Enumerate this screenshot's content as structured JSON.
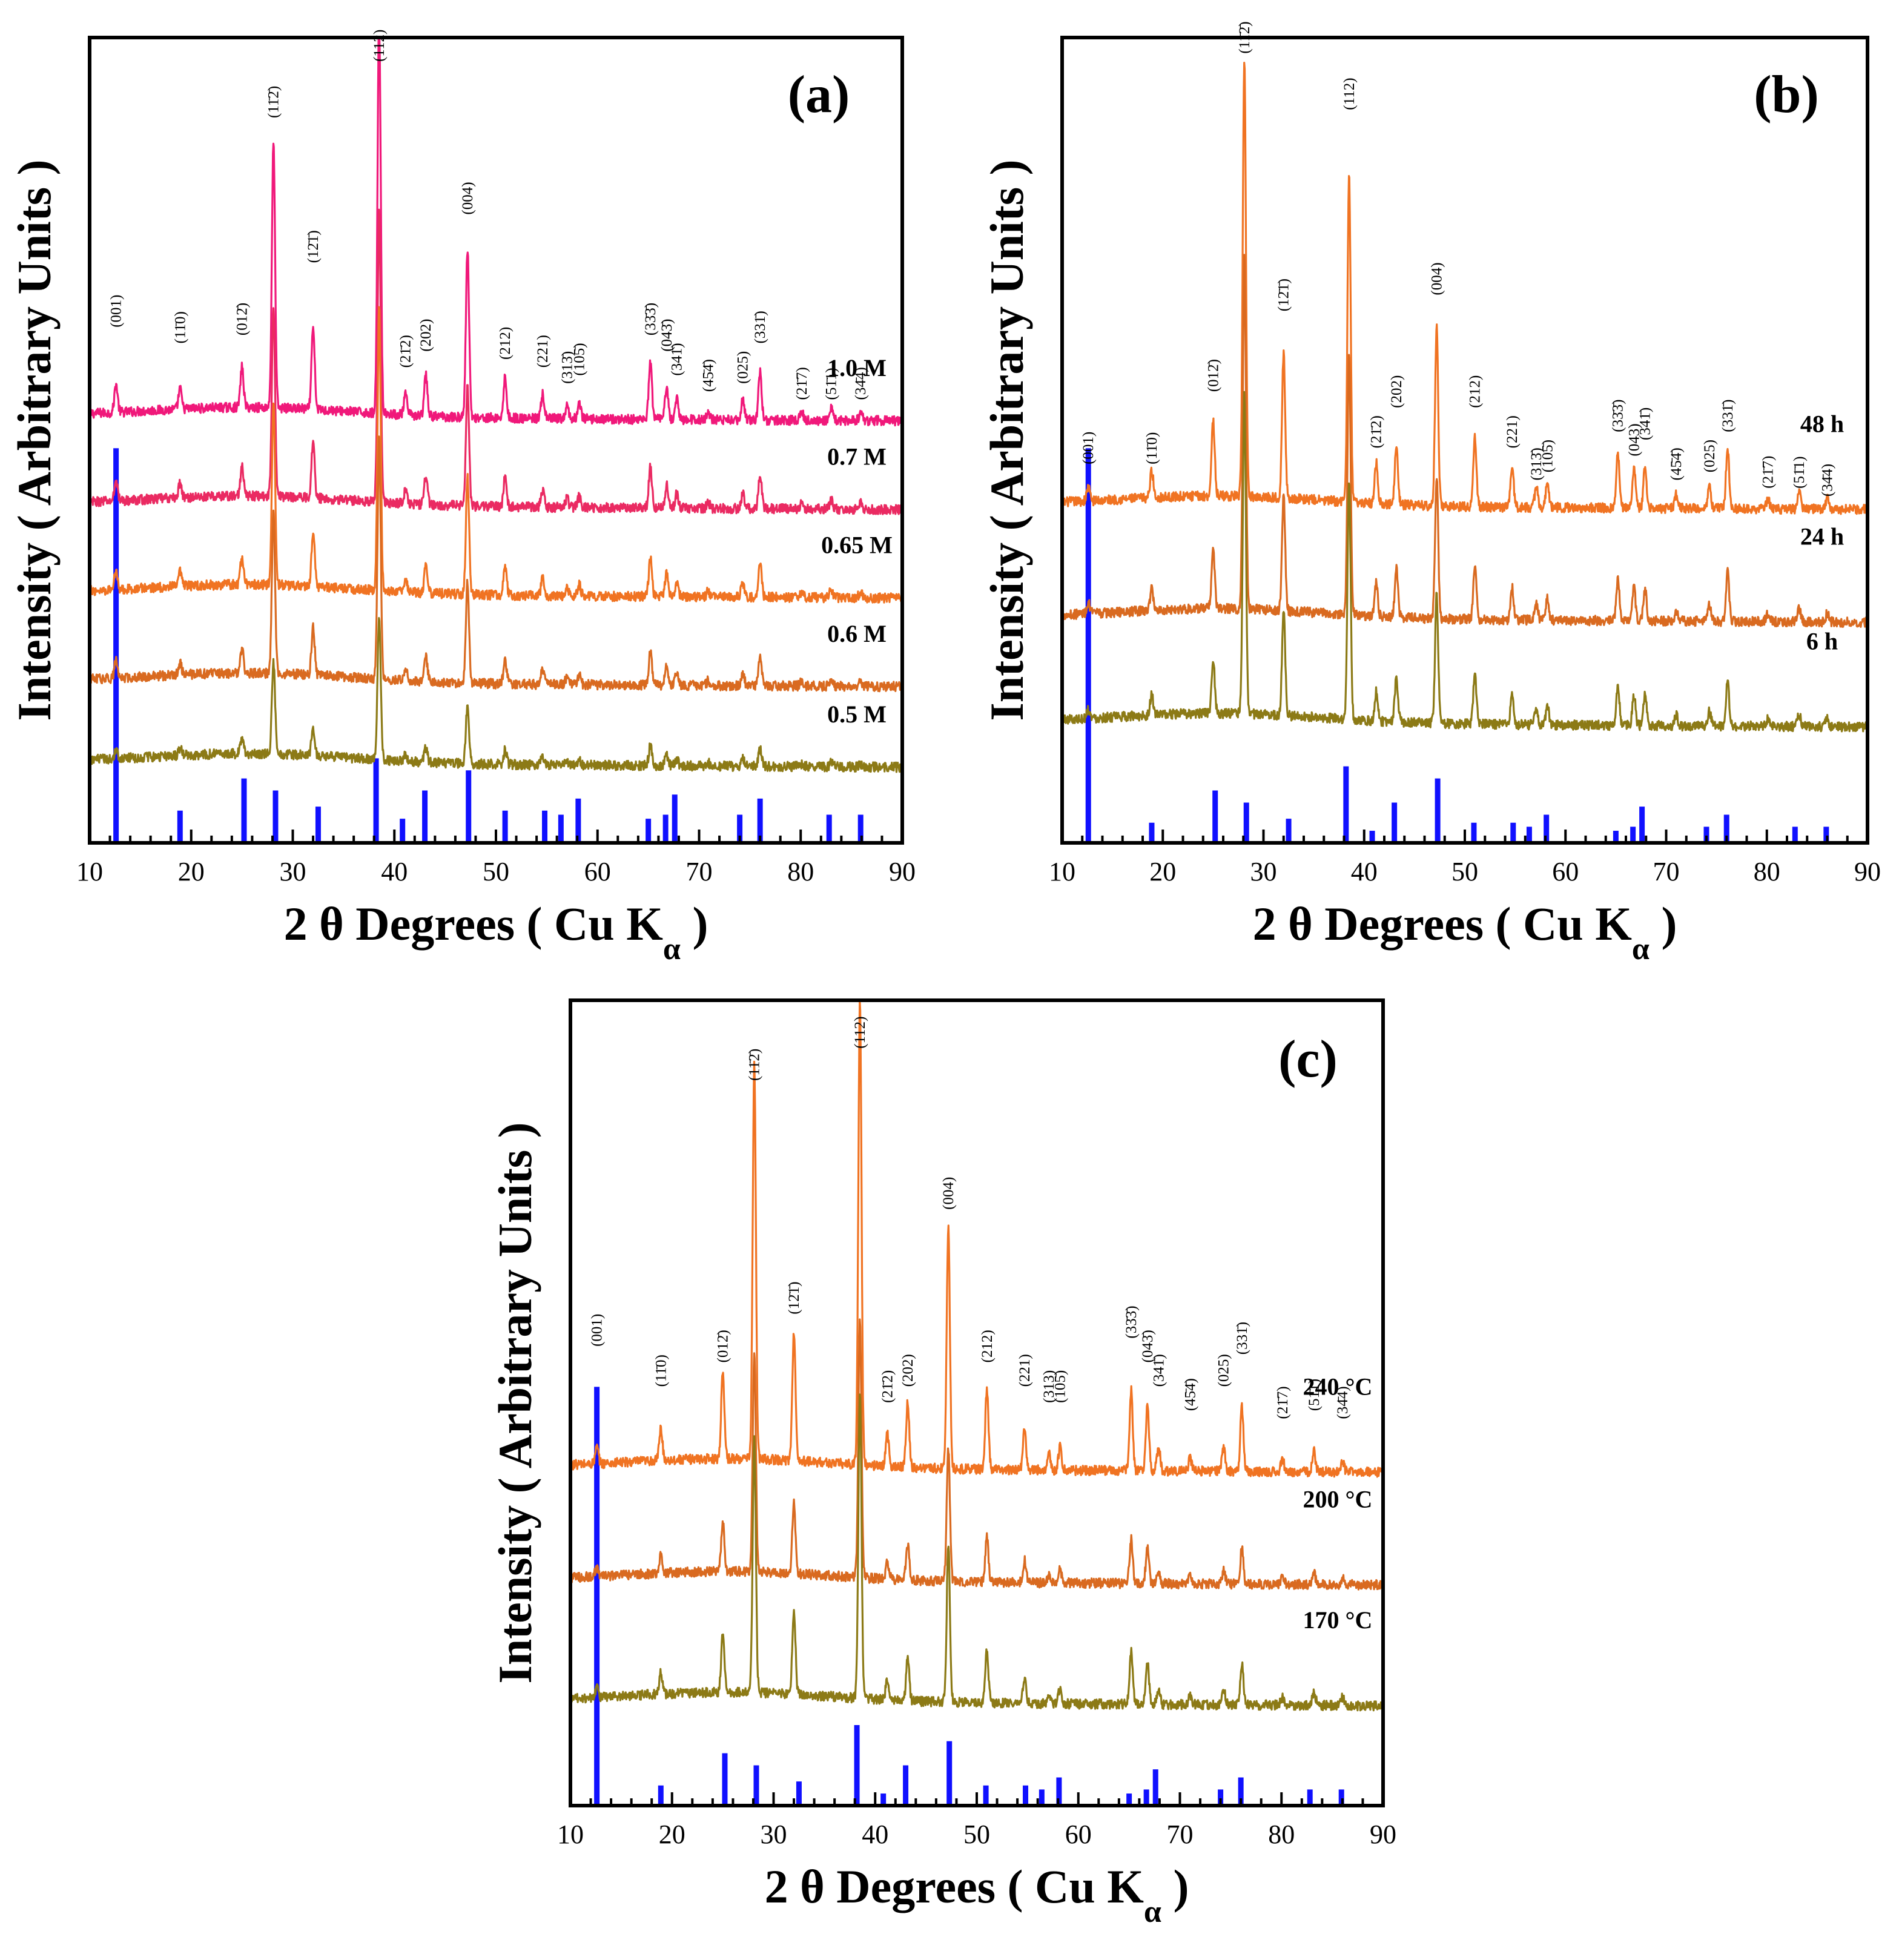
{
  "common": {
    "xlabel": "2 θ Degrees ( Cu K",
    "xlabel_sub": "α",
    "xlabel_close": " )",
    "ylabel": "Intensity ( Arbitrary Units )",
    "xlim": [
      10,
      90
    ],
    "xticks": [
      10,
      20,
      30,
      40,
      50,
      60,
      70,
      80,
      90
    ],
    "colors": {
      "ref": "#1010ff"
    }
  },
  "chart_data": [
    {
      "type": "line",
      "panel": "(a)",
      "title": "(a)",
      "series": [
        {
          "name": "1.0 M",
          "color": "#f0187a",
          "offset": 0.53,
          "scale": 1.0
        },
        {
          "name": "0.7 M",
          "color": "#ea2a62",
          "offset": 0.42,
          "scale": 0.72
        },
        {
          "name": "0.65 M",
          "color": "#f07322",
          "offset": 0.31,
          "scale": 0.7
        },
        {
          "name": "0.6 M",
          "color": "#d96a20",
          "offset": 0.2,
          "scale": 0.6
        },
        {
          "name": "0.5 M",
          "color": "#8c7a16",
          "offset": 0.1,
          "scale": 0.35
        }
      ],
      "peaks": [
        {
          "hkl": "(001)",
          "pos": 12.6,
          "h": 0.035,
          "label_ht": 0.64
        },
        {
          "hkl": "(11̄0)",
          "pos": 18.9,
          "h": 0.025,
          "label_ht": 0.62
        },
        {
          "hkl": "(012̄)",
          "pos": 25.0,
          "h": 0.05,
          "label_ht": 0.63
        },
        {
          "hkl": "(11̄2̄)",
          "pos": 28.1,
          "h": 0.33,
          "label_ht": 0.9
        },
        {
          "hkl": "(12̄1̄)",
          "pos": 32.0,
          "h": 0.1,
          "label_ht": 0.72
        },
        {
          "hkl": "(112)",
          "pos": 38.5,
          "h": 0.5,
          "label_ht": 0.97
        },
        {
          "hkl": "(21̄2)",
          "pos": 41.1,
          "h": 0.025,
          "label_ht": 0.59
        },
        {
          "hkl": "(202)",
          "pos": 43.1,
          "h": 0.05,
          "label_ht": 0.61
        },
        {
          "hkl": "(004)",
          "pos": 47.2,
          "h": 0.21,
          "label_ht": 0.78
        },
        {
          "hkl": "(212)",
          "pos": 50.9,
          "h": 0.05,
          "label_ht": 0.6
        },
        {
          "hkl": "(221)",
          "pos": 54.6,
          "h": 0.03,
          "label_ht": 0.59
        },
        {
          "hkl": "(313̄)",
          "pos": 57.0,
          "h": 0.015,
          "label_ht": 0.57
        },
        {
          "hkl": "(105̄)",
          "pos": 58.2,
          "h": 0.02,
          "label_ht": 0.58
        },
        {
          "hkl": "(33̄3̄)",
          "pos": 65.2,
          "h": 0.07,
          "label_ht": 0.63
        },
        {
          "hkl": "(043̄)",
          "pos": 66.8,
          "h": 0.04,
          "label_ht": 0.61
        },
        {
          "hkl": "(341̄)",
          "pos": 67.8,
          "h": 0.025,
          "label_ht": 0.58
        },
        {
          "hkl": "(45̄4̄)",
          "pos": 70.9,
          "h": 0.01,
          "label_ht": 0.56
        },
        {
          "hkl": "(025)",
          "pos": 74.3,
          "h": 0.025,
          "label_ht": 0.57
        },
        {
          "hkl": "(331̄)",
          "pos": 76.0,
          "h": 0.06,
          "label_ht": 0.62
        },
        {
          "hkl": "(21̄7)",
          "pos": 80.1,
          "h": 0.01,
          "label_ht": 0.55
        },
        {
          "hkl": "(51̄1)",
          "pos": 83.0,
          "h": 0.015,
          "label_ht": 0.55
        },
        {
          "hkl": "(34̄4)",
          "pos": 85.9,
          "h": 0.01,
          "label_ht": 0.55
        }
      ],
      "reference": [
        {
          "pos": 12.6,
          "h": 0.49
        },
        {
          "pos": 18.9,
          "h": 0.04
        },
        {
          "pos": 25.2,
          "h": 0.08
        },
        {
          "pos": 28.3,
          "h": 0.065
        },
        {
          "pos": 32.5,
          "h": 0.045
        },
        {
          "pos": 38.2,
          "h": 0.105
        },
        {
          "pos": 40.8,
          "h": 0.03
        },
        {
          "pos": 43.0,
          "h": 0.065
        },
        {
          "pos": 47.3,
          "h": 0.09
        },
        {
          "pos": 50.9,
          "h": 0.04
        },
        {
          "pos": 54.8,
          "h": 0.04
        },
        {
          "pos": 56.4,
          "h": 0.035
        },
        {
          "pos": 58.1,
          "h": 0.055
        },
        {
          "pos": 65.0,
          "h": 0.03
        },
        {
          "pos": 66.7,
          "h": 0.035
        },
        {
          "pos": 67.6,
          "h": 0.06
        },
        {
          "pos": 74.0,
          "h": 0.035
        },
        {
          "pos": 76.0,
          "h": 0.055
        },
        {
          "pos": 82.8,
          "h": 0.035
        },
        {
          "pos": 85.9,
          "h": 0.035
        }
      ]
    },
    {
      "type": "line",
      "panel": "(b)",
      "title": "(b)",
      "series": [
        {
          "name": "48 h",
          "color": "#f07322",
          "offset": 0.42,
          "scale": 0.85
        },
        {
          "name": "24 h",
          "color": "#d96a20",
          "offset": 0.28,
          "scale": 0.68
        },
        {
          "name": "6 h",
          "color": "#8c7a16",
          "offset": 0.15,
          "scale": 0.62
        }
      ],
      "peaks": [
        {
          "hkl": "(001)",
          "pos": 12.6,
          "h": 0.02,
          "label_ht": 0.47
        },
        {
          "hkl": "(11̄0)",
          "pos": 18.9,
          "h": 0.04,
          "label_ht": 0.47
        },
        {
          "hkl": "(012̄)",
          "pos": 25.0,
          "h": 0.11,
          "label_ht": 0.56
        },
        {
          "hkl": "(11̄2̄)",
          "pos": 28.1,
          "h": 0.64,
          "label_ht": 0.98
        },
        {
          "hkl": "(12̄1̄)",
          "pos": 32.0,
          "h": 0.21,
          "label_ht": 0.66
        },
        {
          "hkl": "(112)",
          "pos": 38.5,
          "h": 0.48,
          "label_ht": 0.91
        },
        {
          "hkl": "(21̄2)",
          "pos": 41.2,
          "h": 0.06,
          "label_ht": 0.49
        },
        {
          "hkl": "(202)",
          "pos": 43.2,
          "h": 0.09,
          "label_ht": 0.54
        },
        {
          "hkl": "(004)",
          "pos": 47.2,
          "h": 0.26,
          "label_ht": 0.68
        },
        {
          "hkl": "(212)",
          "pos": 51.0,
          "h": 0.1,
          "label_ht": 0.54
        },
        {
          "hkl": "(221)",
          "pos": 54.7,
          "h": 0.06,
          "label_ht": 0.49
        },
        {
          "hkl": "(313̄)",
          "pos": 57.1,
          "h": 0.03,
          "label_ht": 0.45
        },
        {
          "hkl": "(105̄)",
          "pos": 58.2,
          "h": 0.04,
          "label_ht": 0.46
        },
        {
          "hkl": "(33̄3̄)",
          "pos": 65.2,
          "h": 0.08,
          "label_ht": 0.51
        },
        {
          "hkl": "(043)",
          "pos": 66.8,
          "h": 0.06,
          "label_ht": 0.48
        },
        {
          "hkl": "(341̄)",
          "pos": 67.9,
          "h": 0.06,
          "label_ht": 0.5
        },
        {
          "hkl": "(45̄4̄)",
          "pos": 71.0,
          "h": 0.02,
          "label_ht": 0.45
        },
        {
          "hkl": "(025)",
          "pos": 74.3,
          "h": 0.03,
          "label_ht": 0.46
        },
        {
          "hkl": "(331̄)",
          "pos": 76.1,
          "h": 0.09,
          "label_ht": 0.51
        },
        {
          "hkl": "(21̄7)",
          "pos": 80.1,
          "h": 0.015,
          "label_ht": 0.44
        },
        {
          "hkl": "(51̄1)",
          "pos": 83.2,
          "h": 0.025,
          "label_ht": 0.44
        },
        {
          "hkl": "(34̄4)",
          "pos": 86.0,
          "h": 0.015,
          "label_ht": 0.43
        }
      ],
      "reference": [
        {
          "pos": 12.6,
          "h": 0.49
        },
        {
          "pos": 18.9,
          "h": 0.025
        },
        {
          "pos": 25.2,
          "h": 0.065
        },
        {
          "pos": 28.3,
          "h": 0.05
        },
        {
          "pos": 32.5,
          "h": 0.03
        },
        {
          "pos": 38.2,
          "h": 0.095
        },
        {
          "pos": 40.8,
          "h": 0.015
        },
        {
          "pos": 43.0,
          "h": 0.05
        },
        {
          "pos": 47.3,
          "h": 0.08
        },
        {
          "pos": 50.9,
          "h": 0.025
        },
        {
          "pos": 54.8,
          "h": 0.025
        },
        {
          "pos": 56.4,
          "h": 0.02
        },
        {
          "pos": 58.1,
          "h": 0.035
        },
        {
          "pos": 65.0,
          "h": 0.015
        },
        {
          "pos": 66.7,
          "h": 0.02
        },
        {
          "pos": 67.6,
          "h": 0.045
        },
        {
          "pos": 74.0,
          "h": 0.02
        },
        {
          "pos": 76.0,
          "h": 0.035
        },
        {
          "pos": 82.8,
          "h": 0.02
        },
        {
          "pos": 85.9,
          "h": 0.02
        }
      ]
    },
    {
      "type": "line",
      "panel": "(c)",
      "title": "(c)",
      "series": [
        {
          "name": "240 °C",
          "color": "#f07322",
          "offset": 0.42,
          "scale": 1.0
        },
        {
          "name": "200 °C",
          "color": "#d96a20",
          "offset": 0.28,
          "scale": 0.55
        },
        {
          "name": "170 °C",
          "color": "#8c7a16",
          "offset": 0.13,
          "scale": 0.65
        }
      ],
      "peaks": [
        {
          "hkl": "(001)",
          "pos": 12.6,
          "h": 0.02,
          "label_ht": 0.57
        },
        {
          "hkl": "(11̄0)",
          "pos": 18.9,
          "h": 0.04,
          "label_ht": 0.52
        },
        {
          "hkl": "(012̄)",
          "pos": 25.0,
          "h": 0.11,
          "label_ht": 0.55
        },
        {
          "hkl": "(11̄2̄)",
          "pos": 28.1,
          "h": 0.49,
          "label_ht": 0.9
        },
        {
          "hkl": "(12̄1̄)",
          "pos": 32.0,
          "h": 0.16,
          "label_ht": 0.61
        },
        {
          "hkl": "(112)",
          "pos": 38.5,
          "h": 0.58,
          "label_ht": 0.94
        },
        {
          "hkl": "(21̄2)",
          "pos": 41.2,
          "h": 0.04,
          "label_ht": 0.5
        },
        {
          "hkl": "(202)",
          "pos": 43.2,
          "h": 0.08,
          "label_ht": 0.52
        },
        {
          "hkl": "(004)",
          "pos": 47.2,
          "h": 0.3,
          "label_ht": 0.74
        },
        {
          "hkl": "(212)",
          "pos": 51.0,
          "h": 0.1,
          "label_ht": 0.55
        },
        {
          "hkl": "(221)",
          "pos": 54.7,
          "h": 0.05,
          "label_ht": 0.52
        },
        {
          "hkl": "(313)",
          "pos": 57.1,
          "h": 0.02,
          "label_ht": 0.5
        },
        {
          "hkl": "(105̄)",
          "pos": 58.2,
          "h": 0.03,
          "label_ht": 0.5
        },
        {
          "hkl": "(33̄3̄)",
          "pos": 65.2,
          "h": 0.1,
          "label_ht": 0.58
        },
        {
          "hkl": "(043̄)",
          "pos": 66.8,
          "h": 0.08,
          "label_ht": 0.55
        },
        {
          "hkl": "(341̄)",
          "pos": 67.9,
          "h": 0.03,
          "label_ht": 0.52
        },
        {
          "hkl": "(45̄4̄)",
          "pos": 71.0,
          "h": 0.015,
          "label_ht": 0.49
        },
        {
          "hkl": "(025)",
          "pos": 74.3,
          "h": 0.03,
          "label_ht": 0.52
        },
        {
          "hkl": "(331̄)",
          "pos": 76.1,
          "h": 0.08,
          "label_ht": 0.56
        },
        {
          "hkl": "(21̄7)",
          "pos": 80.1,
          "h": 0.015,
          "label_ht": 0.48
        },
        {
          "hkl": "(51̄1)",
          "pos": 83.2,
          "h": 0.025,
          "label_ht": 0.49
        },
        {
          "hkl": "(34̄4)",
          "pos": 86.0,
          "h": 0.015,
          "label_ht": 0.48
        }
      ],
      "reference": [
        {
          "pos": 12.6,
          "h": 0.52
        },
        {
          "pos": 18.9,
          "h": 0.025
        },
        {
          "pos": 25.2,
          "h": 0.065
        },
        {
          "pos": 28.3,
          "h": 0.05
        },
        {
          "pos": 32.5,
          "h": 0.03
        },
        {
          "pos": 38.2,
          "h": 0.1
        },
        {
          "pos": 40.8,
          "h": 0.015
        },
        {
          "pos": 43.0,
          "h": 0.05
        },
        {
          "pos": 47.3,
          "h": 0.08
        },
        {
          "pos": 50.9,
          "h": 0.025
        },
        {
          "pos": 54.8,
          "h": 0.025
        },
        {
          "pos": 56.4,
          "h": 0.02
        },
        {
          "pos": 58.1,
          "h": 0.035
        },
        {
          "pos": 65.0,
          "h": 0.015
        },
        {
          "pos": 66.7,
          "h": 0.02
        },
        {
          "pos": 67.6,
          "h": 0.045
        },
        {
          "pos": 74.0,
          "h": 0.02
        },
        {
          "pos": 76.0,
          "h": 0.035
        },
        {
          "pos": 82.8,
          "h": 0.02
        },
        {
          "pos": 85.9,
          "h": 0.02
        }
      ]
    }
  ]
}
